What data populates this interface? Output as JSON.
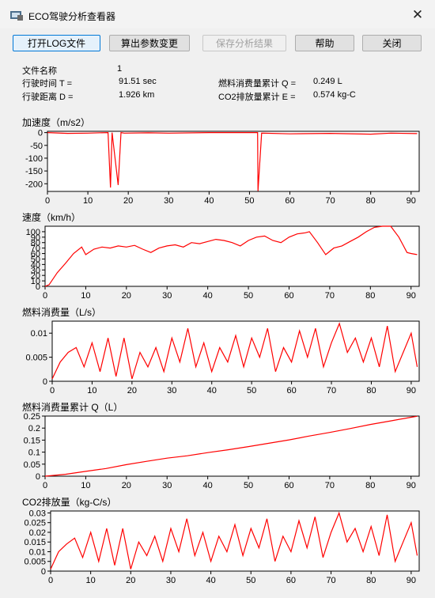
{
  "window": {
    "title": "ECO驾驶分析查看器",
    "close_glyph": "✕"
  },
  "toolbar": {
    "open_log": "打开LOG文件",
    "calc_params": "算出参数变更",
    "save_result": "保存分析结果",
    "help": "帮助",
    "close": "关闭"
  },
  "info": {
    "file_name_label": "文件名称",
    "file_name_value": "1",
    "time_label": "行驶时间 T =",
    "time_value": "91.51 sec",
    "distance_label": "行驶距离 D =",
    "distance_value": "1.926 km",
    "fuel_total_label": "燃料消费量累计 Q =",
    "fuel_total_value": "0.249 L",
    "co2_total_label": "CO2排放量累计 E =",
    "co2_total_value": "0.574 kg-C"
  },
  "chart_data": [
    {
      "type": "line",
      "title": "加速度（m/s2）",
      "xlim": [
        0,
        92
      ],
      "ylim": [
        -230,
        5
      ],
      "xticks": [
        0,
        10,
        20,
        30,
        40,
        50,
        60,
        70,
        80,
        90
      ],
      "yticks": [
        0,
        -50,
        -100,
        -150,
        -200
      ],
      "series": [
        {
          "color": "#ff0000",
          "x": [
            0,
            5,
            10,
            15,
            15.6,
            16,
            17.5,
            18.2,
            19,
            25,
            30,
            40,
            52,
            52.1,
            53,
            60,
            70,
            80,
            85,
            91.5
          ],
          "y": [
            0,
            -3,
            -2,
            0,
            -215,
            0,
            -205,
            0,
            -2,
            -1,
            -2,
            0,
            0,
            -228,
            -2,
            -5,
            -3,
            -6,
            -2,
            -4
          ]
        }
      ]
    },
    {
      "type": "line",
      "title": "速度（km/h）",
      "xlim": [
        0,
        92
      ],
      "ylim": [
        0,
        110
      ],
      "xticks": [
        0,
        10,
        20,
        30,
        40,
        50,
        60,
        70,
        80,
        90
      ],
      "yticks": [
        0,
        10,
        20,
        30,
        40,
        50,
        60,
        70,
        80,
        90,
        100
      ],
      "series": [
        {
          "color": "#ff0000",
          "x": [
            0,
            1,
            3,
            5,
            7,
            9,
            10,
            12,
            14,
            16,
            18,
            20,
            22,
            24,
            26,
            28,
            30,
            32,
            34,
            36,
            38,
            40,
            42,
            44,
            46,
            48,
            50,
            52,
            54,
            56,
            58,
            60,
            62,
            64,
            65,
            67,
            69,
            71,
            73,
            75,
            77,
            79,
            81,
            83,
            85,
            87,
            89,
            90,
            91.5
          ],
          "y": [
            0,
            3,
            25,
            42,
            60,
            72,
            58,
            68,
            72,
            70,
            74,
            72,
            75,
            68,
            62,
            70,
            74,
            76,
            72,
            80,
            78,
            82,
            86,
            84,
            80,
            74,
            84,
            90,
            92,
            84,
            80,
            90,
            96,
            98,
            100,
            80,
            58,
            70,
            74,
            82,
            90,
            100,
            108,
            110,
            110,
            90,
            62,
            60,
            58
          ]
        }
      ]
    },
    {
      "type": "line",
      "title": "燃料消费量（L/s）",
      "xlim": [
        0,
        92
      ],
      "ylim": [
        0,
        0.0125
      ],
      "xticks": [
        0,
        10,
        20,
        30,
        40,
        50,
        60,
        70,
        80,
        90
      ],
      "yticks": [
        0,
        0.005,
        0.01
      ],
      "series": [
        {
          "color": "#ff0000",
          "x": [
            0,
            2,
            4,
            6,
            8,
            10,
            12,
            14,
            16,
            18,
            20,
            22,
            24,
            26,
            28,
            30,
            32,
            34,
            36,
            38,
            40,
            42,
            44,
            46,
            48,
            50,
            52,
            54,
            56,
            58,
            60,
            62,
            64,
            66,
            68,
            70,
            72,
            74,
            76,
            78,
            80,
            82,
            84,
            86,
            88,
            90,
            91.5
          ],
          "y": [
            0.0005,
            0.004,
            0.006,
            0.007,
            0.003,
            0.008,
            0.002,
            0.009,
            0.001,
            0.009,
            0.0005,
            0.006,
            0.003,
            0.007,
            0.002,
            0.009,
            0.004,
            0.011,
            0.003,
            0.008,
            0.002,
            0.007,
            0.004,
            0.0095,
            0.003,
            0.009,
            0.005,
            0.011,
            0.002,
            0.007,
            0.004,
            0.0105,
            0.005,
            0.011,
            0.003,
            0.008,
            0.012,
            0.006,
            0.009,
            0.004,
            0.009,
            0.003,
            0.0115,
            0.002,
            0.006,
            0.01,
            0.003
          ]
        }
      ]
    },
    {
      "type": "line",
      "title": "燃料消费量累计 Q（L）",
      "xlim": [
        0,
        92
      ],
      "ylim": [
        0,
        0.25
      ],
      "xticks": [
        0,
        10,
        20,
        30,
        40,
        50,
        60,
        70,
        80,
        90
      ],
      "yticks": [
        0,
        0.05,
        0.1,
        0.15,
        0.2,
        0.25
      ],
      "series": [
        {
          "color": "#ff0000",
          "x": [
            0,
            5,
            10,
            15,
            20,
            25,
            30,
            35,
            40,
            45,
            50,
            55,
            60,
            65,
            70,
            75,
            80,
            85,
            90,
            91.5
          ],
          "y": [
            0,
            0.008,
            0.02,
            0.032,
            0.048,
            0.062,
            0.075,
            0.085,
            0.098,
            0.11,
            0.123,
            0.137,
            0.151,
            0.167,
            0.182,
            0.198,
            0.215,
            0.23,
            0.245,
            0.249
          ]
        }
      ]
    },
    {
      "type": "line",
      "title": "CO2排放量（kg-C/s）",
      "xlim": [
        0,
        92
      ],
      "ylim": [
        0,
        0.031
      ],
      "xticks": [
        0,
        10,
        20,
        30,
        40,
        50,
        60,
        70,
        80,
        90
      ],
      "yticks": [
        0,
        0.005,
        0.01,
        0.015,
        0.02,
        0.025,
        0.03
      ],
      "series": [
        {
          "color": "#ff0000",
          "x": [
            0,
            2,
            4,
            6,
            8,
            10,
            12,
            14,
            16,
            18,
            20,
            22,
            24,
            26,
            28,
            30,
            32,
            34,
            36,
            38,
            40,
            42,
            44,
            46,
            48,
            50,
            52,
            54,
            56,
            58,
            60,
            62,
            64,
            66,
            68,
            70,
            72,
            74,
            76,
            78,
            80,
            82,
            84,
            86,
            88,
            90,
            91.5
          ],
          "y": [
            0.001,
            0.01,
            0.014,
            0.017,
            0.007,
            0.02,
            0.005,
            0.022,
            0.003,
            0.022,
            0.001,
            0.015,
            0.008,
            0.018,
            0.005,
            0.022,
            0.01,
            0.027,
            0.008,
            0.02,
            0.005,
            0.018,
            0.01,
            0.024,
            0.008,
            0.022,
            0.012,
            0.027,
            0.005,
            0.018,
            0.01,
            0.026,
            0.012,
            0.028,
            0.007,
            0.02,
            0.03,
            0.015,
            0.022,
            0.01,
            0.023,
            0.008,
            0.029,
            0.005,
            0.015,
            0.025,
            0.008
          ]
        }
      ]
    }
  ]
}
